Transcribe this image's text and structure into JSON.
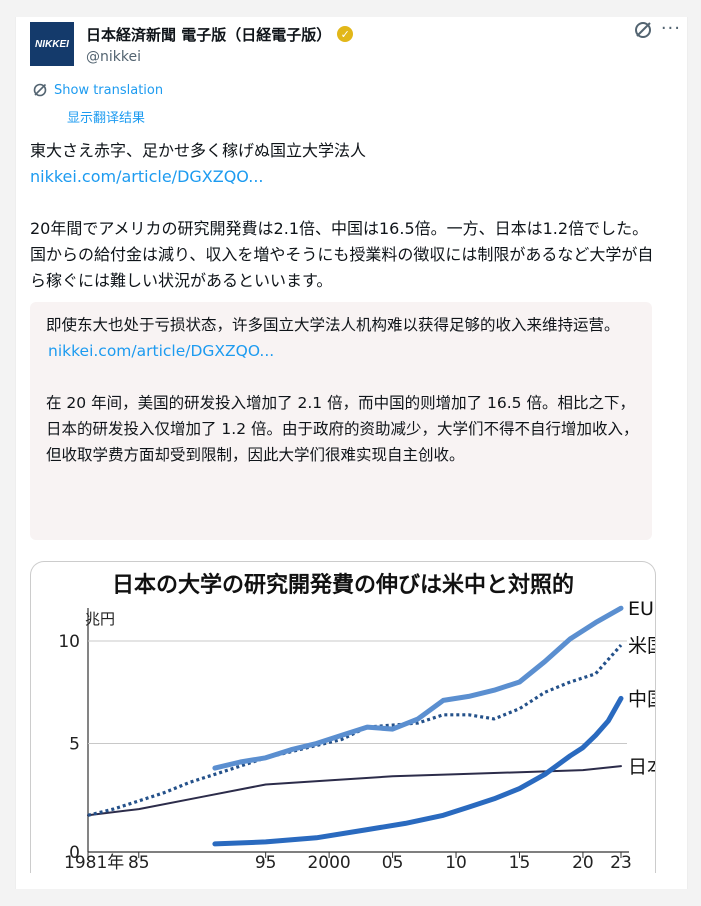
{
  "account": {
    "logo_text": "NIKKEI",
    "display_name": "日本経済新聞 電子版（日経電子版）",
    "handle": "@nikkei"
  },
  "translate": {
    "label": "Show translation",
    "subtitle": "显示翻译结果"
  },
  "post": {
    "headline": "東大さえ赤字、足かせ多く稼げぬ国立大学法人",
    "link": "nikkei.com/article/DGXZQO...",
    "body": "20年間でアメリカの研究開発費は2.1倍、中国は16.5倍。一方、日本は1.2倍でした。国からの給付金は減り、収入を増やそうにも授業料の徴収には制限があるなど大学が自ら稼ぐには難しい状況があるといいます。"
  },
  "translation": {
    "headline": "即使东大也处于亏损状态，许多国立大学法人机构难以获得足够的收入来维持运营。",
    "link": "nikkei.com/article/DGXZQO...",
    "body": "在 20 年间，美国的研发投入增加了 2.1 倍，而中国的则增加了 16.5 倍。相比之下，日本的研发投入仅增加了 1.2 倍。由于政府的资助减少，大学们不得不自行增加收入，但收取学费方面却受到限制，因此大学们很难实现自主创收。"
  },
  "colors": {
    "link": "#1d9bf0",
    "eu": "#5b8fd0",
    "us": "#24518a",
    "china": "#2a6abf",
    "japan": "#2c2c4a"
  },
  "chart_data": {
    "type": "line",
    "title": "日本の大学の研究開発費の伸びは米中と対照的",
    "ylabel": "兆円",
    "ylim": [
      0,
      12
    ],
    "yticks": [
      0,
      5,
      10
    ],
    "xlim": [
      1981,
      2023
    ],
    "xticks": [
      "1981年",
      "85",
      "2000",
      "95",
      "05",
      "10",
      "15",
      "20",
      "23"
    ],
    "xtick_values": [
      1981,
      1985,
      2000,
      1995,
      2005,
      2010,
      2015,
      2020,
      2023
    ],
    "series": [
      {
        "name": "EU",
        "style": "solid-thick",
        "color": "#5b8fd0",
        "x": [
          1991,
          1993,
          1995,
          1997,
          1999,
          2001,
          2003,
          2005,
          2007,
          2009,
          2011,
          2013,
          2015,
          2017,
          2019,
          2021,
          2023
        ],
        "values": [
          3.8,
          4.1,
          4.3,
          4.7,
          5.0,
          5.4,
          5.8,
          5.7,
          6.2,
          7.1,
          7.3,
          7.6,
          8.0,
          9.0,
          10.1,
          10.9,
          11.6
        ]
      },
      {
        "name": "米国",
        "style": "dotted",
        "color": "#24518a",
        "x": [
          1981,
          1983,
          1985,
          1987,
          1989,
          1991,
          1993,
          1995,
          1997,
          1999,
          2001,
          2003,
          2005,
          2007,
          2009,
          2011,
          2013,
          2015,
          2017,
          2019,
          2021,
          2023
        ],
        "values": [
          1.5,
          1.8,
          2.2,
          2.6,
          3.1,
          3.5,
          3.9,
          4.3,
          4.6,
          4.9,
          5.2,
          5.8,
          5.9,
          6.0,
          6.4,
          6.4,
          6.2,
          6.7,
          7.5,
          8.0,
          8.4,
          9.8
        ]
      },
      {
        "name": "中国",
        "style": "solid-thick",
        "color": "#2a6abf",
        "x": [
          1991,
          1995,
          1999,
          2003,
          2006,
          2009,
          2011,
          2013,
          2015,
          2017,
          2019,
          2020,
          2021,
          2022,
          2023
        ],
        "values": [
          0.1,
          0.2,
          0.4,
          0.8,
          1.1,
          1.5,
          1.9,
          2.3,
          2.8,
          3.5,
          4.4,
          4.8,
          5.4,
          6.1,
          7.2
        ]
      },
      {
        "name": "日本",
        "style": "solid-thin",
        "color": "#2c2c4a",
        "x": [
          1981,
          1985,
          1990,
          1995,
          2000,
          2005,
          2010,
          2015,
          2020,
          2023
        ],
        "values": [
          1.5,
          1.8,
          2.4,
          3.0,
          3.2,
          3.4,
          3.5,
          3.6,
          3.7,
          3.9
        ]
      }
    ]
  }
}
